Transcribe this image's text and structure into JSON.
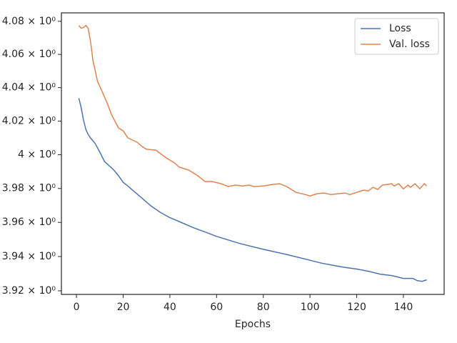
{
  "chart_data": {
    "type": "line",
    "x_label": "Epochs",
    "yscale": "log",
    "legend": "upper right",
    "grid": false,
    "xlim": [
      -6.45,
      157.45
    ],
    "xticks": [
      0,
      20,
      40,
      60,
      80,
      100,
      120,
      140
    ],
    "ylim": [
      3.9179,
      4.0851
    ],
    "yticks": [
      {
        "value": 3.92,
        "label": "3.92 × 10⁰"
      },
      {
        "value": 3.94,
        "label": "3.94 × 10⁰"
      },
      {
        "value": 3.96,
        "label": "3.96 × 10⁰"
      },
      {
        "value": 3.98,
        "label": "3.98 × 10⁰"
      },
      {
        "value": 4,
        "label": "4 × 10⁰"
      },
      {
        "value": 4.02,
        "label": "4.02 × 10⁰"
      },
      {
        "value": 4.04,
        "label": "4.04 × 10⁰"
      },
      {
        "value": 4.06,
        "label": "4.06 × 10⁰"
      },
      {
        "value": 4.08,
        "label": "4.08 × 10⁰"
      }
    ],
    "series": [
      {
        "name": "Loss",
        "color": "#4c72b0",
        "x": [
          1,
          2,
          3,
          4,
          5,
          6,
          8,
          10,
          12,
          14,
          16,
          18,
          20,
          22,
          24,
          28,
          32,
          36,
          40,
          45,
          50,
          55,
          60,
          70,
          80,
          90,
          100,
          105,
          110,
          115,
          120,
          125,
          130,
          135,
          140,
          144,
          146,
          148,
          150
        ],
        "values": [
          4.0337,
          4.0282,
          4.0206,
          4.0151,
          4.0121,
          4.01,
          4.0066,
          4.0015,
          3.996,
          3.9934,
          3.9909,
          3.9875,
          3.9836,
          3.9815,
          3.979,
          3.9743,
          3.9696,
          3.9658,
          3.9628,
          3.9599,
          3.9569,
          3.9544,
          3.9518,
          3.9476,
          3.9442,
          3.9412,
          3.9378,
          3.9361,
          3.9348,
          3.9336,
          3.9327,
          3.9314,
          3.9297,
          3.9289,
          3.9272,
          3.9272,
          3.9259,
          3.9255,
          3.9264
        ]
      },
      {
        "name": "Val. loss",
        "color": "#dd8452",
        "x": [
          1,
          2,
          3,
          4,
          5,
          6,
          7,
          8,
          9,
          11,
          13,
          15,
          17,
          18,
          20,
          22,
          24,
          26,
          28,
          30,
          34,
          38,
          42,
          44,
          48,
          52,
          55,
          58,
          62,
          65,
          68,
          71,
          74,
          76,
          80,
          84,
          87,
          90,
          94,
          98,
          100,
          103,
          106,
          109,
          112,
          115,
          117,
          120,
          123,
          125,
          127,
          129,
          131,
          133,
          135,
          136,
          138,
          140,
          142,
          143,
          145,
          147,
          149,
          150
        ],
        "values": [
          4.0775,
          4.0758,
          4.0762,
          4.0775,
          4.0758,
          4.0681,
          4.0567,
          4.0503,
          4.0439,
          4.0376,
          4.0312,
          4.024,
          4.0185,
          4.0159,
          4.0142,
          4.01,
          4.0087,
          4.0074,
          4.0049,
          4.0032,
          4.0027,
          3.9985,
          3.9951,
          3.9926,
          3.9909,
          3.9875,
          3.9841,
          3.9841,
          3.9828,
          3.9811,
          3.982,
          3.9815,
          3.982,
          3.9811,
          3.9815,
          3.9824,
          3.9828,
          3.9811,
          3.9777,
          3.9764,
          3.9756,
          3.9769,
          3.9773,
          3.9764,
          3.9769,
          3.9773,
          3.9764,
          3.9777,
          3.979,
          3.9786,
          3.9807,
          3.9794,
          3.982,
          3.9824,
          3.9828,
          3.9815,
          3.9828,
          3.9798,
          3.982,
          3.9807,
          3.9828,
          3.9798,
          3.9828,
          3.9815
        ]
      }
    ]
  }
}
